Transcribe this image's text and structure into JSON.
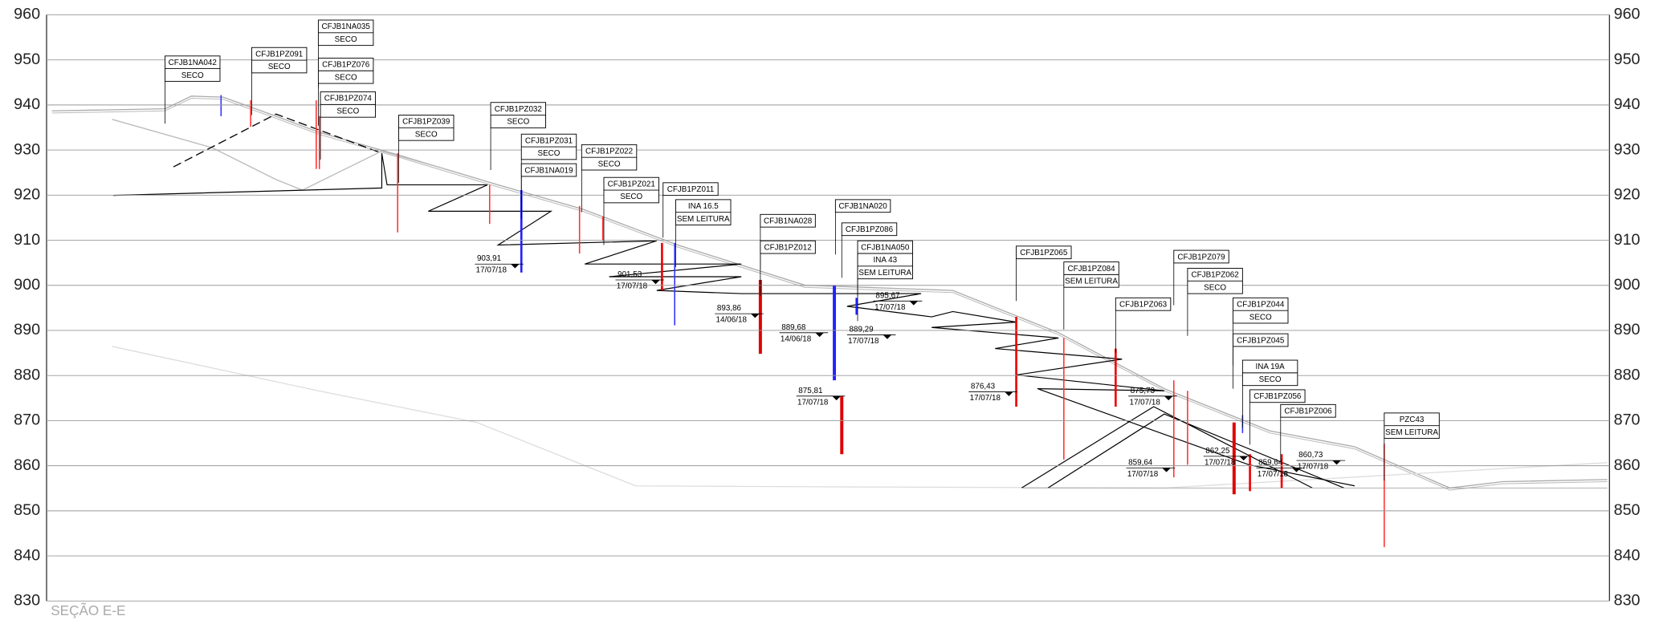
{
  "elevation_axis": {
    "ticks": [
      960,
      950,
      940,
      930,
      920,
      910,
      900,
      890,
      880,
      870,
      860,
      850,
      840,
      830
    ]
  },
  "caption": "SEÇÃO E-E",
  "instruments": [
    {
      "name": "CFJB1NA042",
      "status": "SECO"
    },
    {
      "name": "CFJB1PZ091",
      "status": "SECO"
    },
    {
      "name": "CFJB1NA035",
      "status": "SECO"
    },
    {
      "name": "CFJB1PZ076",
      "status": "SECO"
    },
    {
      "name": "CFJB1PZ074",
      "status": "SECO"
    },
    {
      "name": "CFJB1PZ039",
      "status": "SECO"
    },
    {
      "name": "CFJB1PZ032",
      "status": "SECO"
    },
    {
      "name": "CFJB1PZ031",
      "status": "SECO"
    },
    {
      "name": "CFJB1NA019"
    },
    {
      "name": "CFJB1PZ022",
      "status": "SECO"
    },
    {
      "name": "CFJB1PZ021",
      "status": "SECO"
    },
    {
      "name": "CFJB1PZ011"
    },
    {
      "name": "INA 16.5",
      "status": "SEM LEITURA"
    },
    {
      "name": "CFJB1NA028"
    },
    {
      "name": "CFJB1PZ012"
    },
    {
      "name": "CFJB1NA020"
    },
    {
      "name": "CFJB1PZ086"
    },
    {
      "name": "CFJB1NA050"
    },
    {
      "name": "INA 43",
      "status": "SEM LEITURA"
    },
    {
      "name": "CFJB1PZ065"
    },
    {
      "name": "CFJB1PZ084",
      "status": "SEM LEITURA"
    },
    {
      "name": "CFJB1PZ079"
    },
    {
      "name": "CFJB1PZ063"
    },
    {
      "name": "CFJB1PZ062",
      "status": "SECO"
    },
    {
      "name": "CFJB1PZ044",
      "status": "SECO"
    },
    {
      "name": "CFJB1PZ045"
    },
    {
      "name": "INA 19A",
      "status": "SECO"
    },
    {
      "name": "CFJB1PZ056"
    },
    {
      "name": "CFJB1PZ006"
    },
    {
      "name": "PZC43",
      "status": "SEM LEITURA"
    }
  ],
  "water_levels": [
    {
      "level": "903,91",
      "date": "17/07/18"
    },
    {
      "level": "901,53",
      "date": "17/07/18"
    },
    {
      "level": "893,86",
      "date": "14/06/18"
    },
    {
      "level": "889,68",
      "date": "14/06/18"
    },
    {
      "level": "895,67",
      "date": "17/07/18"
    },
    {
      "level": "889,29",
      "date": "17/07/18"
    },
    {
      "level": "875,81",
      "date": "17/07/18"
    },
    {
      "level": "876,43",
      "date": "17/07/18"
    },
    {
      "level": "875,73",
      "date": "17/07/18"
    },
    {
      "level": "859,64",
      "date": "17/07/18"
    },
    {
      "level": "862,25",
      "date": "17/07/18"
    },
    {
      "level": "859,64",
      "date": "17/07/18"
    },
    {
      "level": "860,73",
      "date": "17/07/18"
    }
  ]
}
